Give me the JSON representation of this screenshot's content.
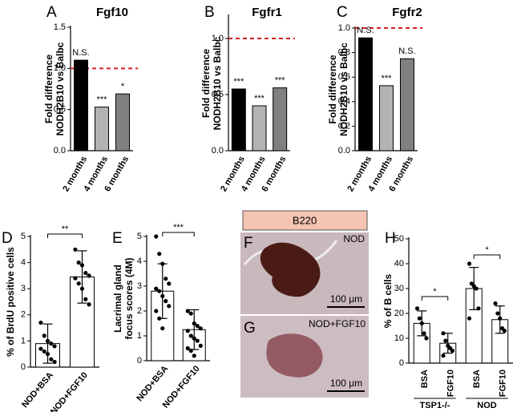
{
  "chart_data": [
    {
      "type": "bar",
      "label": "A",
      "title": "Fgf10",
      "ylabel": [
        "Fold difference",
        "NODH2B10 vs Balbc"
      ],
      "categories": [
        "2 months",
        "4 months",
        "6 months"
      ],
      "values": [
        1.1,
        0.53,
        0.69
      ],
      "colors": [
        "#000000",
        "#b3b3b3",
        "#808080"
      ],
      "annotations": [
        "N.S.",
        "***",
        "*"
      ],
      "reference_line": 1,
      "reference_color": "#d62020",
      "ylim": [
        0,
        1.5
      ],
      "yticks": [
        {
          "value": 0,
          "label": "0.0"
        },
        {
          "value": 0.5,
          "label": "0.5"
        },
        {
          "value": 1,
          "label": "1.0"
        },
        {
          "value": 1.5,
          "label": "1.5"
        }
      ]
    },
    {
      "type": "bar",
      "label": "B",
      "title": "Fgfr1",
      "ylabel": [
        "Fold difference",
        "NODH2B10 vs Balbc"
      ],
      "categories": [
        "2 months",
        "4 months",
        "6 months"
      ],
      "values": [
        0.55,
        0.4,
        0.56
      ],
      "colors": [
        "#000000",
        "#b3b3b3",
        "#808080"
      ],
      "annotations": [
        "***",
        "***",
        "***"
      ],
      "reference_line": 1,
      "reference_color": "#d62020",
      "ylim": [
        0,
        1.2
      ],
      "yticks": [
        {
          "value": 0,
          "label": "0.0"
        },
        {
          "value": 0.5,
          "label": "0.5"
        },
        {
          "value": 1,
          "label": "1.0"
        }
      ]
    },
    {
      "type": "bar",
      "label": "C",
      "title": "Fgfr2",
      "ylabel": [
        "Fold difference",
        "NODH2B10 vs Balbc"
      ],
      "categories": [
        "2 months",
        "4 months",
        "6 months"
      ],
      "values": [
        0.92,
        0.53,
        0.75
      ],
      "colors": [
        "#000000",
        "#b3b3b3",
        "#808080"
      ],
      "annotations": [
        "N.S.",
        "***",
        "N.S."
      ],
      "reference_line": 1,
      "reference_color": "#d62020",
      "ylim": [
        0,
        1
      ],
      "yticks": [
        {
          "value": 0,
          "label": "0.0"
        },
        {
          "value": 0.2,
          "label": "0.2"
        },
        {
          "value": 0.4,
          "label": "0.4"
        },
        {
          "value": 0.6,
          "label": "0.6"
        },
        {
          "value": 0.8,
          "label": "0.8"
        },
        {
          "value": 1,
          "label": "1.0"
        }
      ]
    },
    {
      "type": "dotbar",
      "label": "D",
      "ylabel": [
        "% of BrdU positive cells"
      ],
      "categories": [
        "NOD+BSA",
        "NOD+FGF10"
      ],
      "values": [
        0.9,
        3.45
      ],
      "errors": [
        0.75,
        1.0
      ],
      "points": [
        [
          1.7,
          1.2,
          1.0,
          0.9,
          0.8,
          0.7,
          0.6,
          0.5,
          0.3,
          0.2
        ],
        [
          4.5,
          4.0,
          3.9,
          3.6,
          3.5,
          3.4,
          3.2,
          3.0,
          2.6,
          2.4
        ]
      ],
      "color": "#ffffff",
      "significance": [
        "**"
      ],
      "ylim": [
        0,
        5
      ],
      "yticks": [
        0,
        1,
        2,
        3,
        4,
        5
      ]
    },
    {
      "type": "dotbar",
      "label": "E",
      "ylabel": [
        "Lacrimal gland",
        "focus scores (4M)"
      ],
      "categories": [
        "NOD+BSA",
        "NOD+FGF10"
      ],
      "values": [
        2.8,
        1.25
      ],
      "errors": [
        1.1,
        0.8
      ],
      "points": [
        [
          5.0,
          4.3,
          3.9,
          3.3,
          3.1,
          2.9,
          2.8,
          2.6,
          2.4,
          2.2,
          2.0,
          1.7,
          1.3
        ],
        [
          2.0,
          1.9,
          1.5,
          1.4,
          1.3,
          1.2,
          1.0,
          0.9,
          0.8,
          0.6,
          0.5,
          0.4,
          0.2
        ]
      ],
      "color": "#ffffff",
      "significance": [
        "***"
      ],
      "ylim": [
        0,
        5
      ],
      "yticks": [
        0,
        1,
        2,
        3,
        4,
        5
      ]
    },
    {
      "type": "micrograph",
      "header": "B220",
      "panels": [
        {
          "label": "F",
          "caption": "NOD",
          "scale_bar": "100 μm"
        },
        {
          "label": "G",
          "caption": "NOD+FGF10",
          "scale_bar": "100 μm"
        }
      ]
    },
    {
      "type": "dotbar",
      "label": "H",
      "ylabel": [
        "% of B cells"
      ],
      "categories": [
        "BSA",
        "FGF10",
        "BSA",
        "FGF10"
      ],
      "groups": [
        "TSP1-/-",
        "NOD"
      ],
      "values": [
        16,
        8,
        30,
        17.5
      ],
      "errors": [
        5,
        4,
        8.5,
        5.5
      ],
      "points": [
        [
          22,
          18,
          16,
          12,
          10
        ],
        [
          12,
          9,
          7,
          6,
          5,
          3
        ],
        [
          40,
          32,
          31,
          30,
          22,
          18
        ],
        [
          24,
          20,
          18,
          14,
          13
        ]
      ],
      "color": "#ffffff",
      "significance": [
        "*",
        "*"
      ],
      "ylim": [
        0,
        50
      ],
      "yticks": [
        0,
        10,
        20,
        30,
        40,
        50
      ]
    }
  ]
}
